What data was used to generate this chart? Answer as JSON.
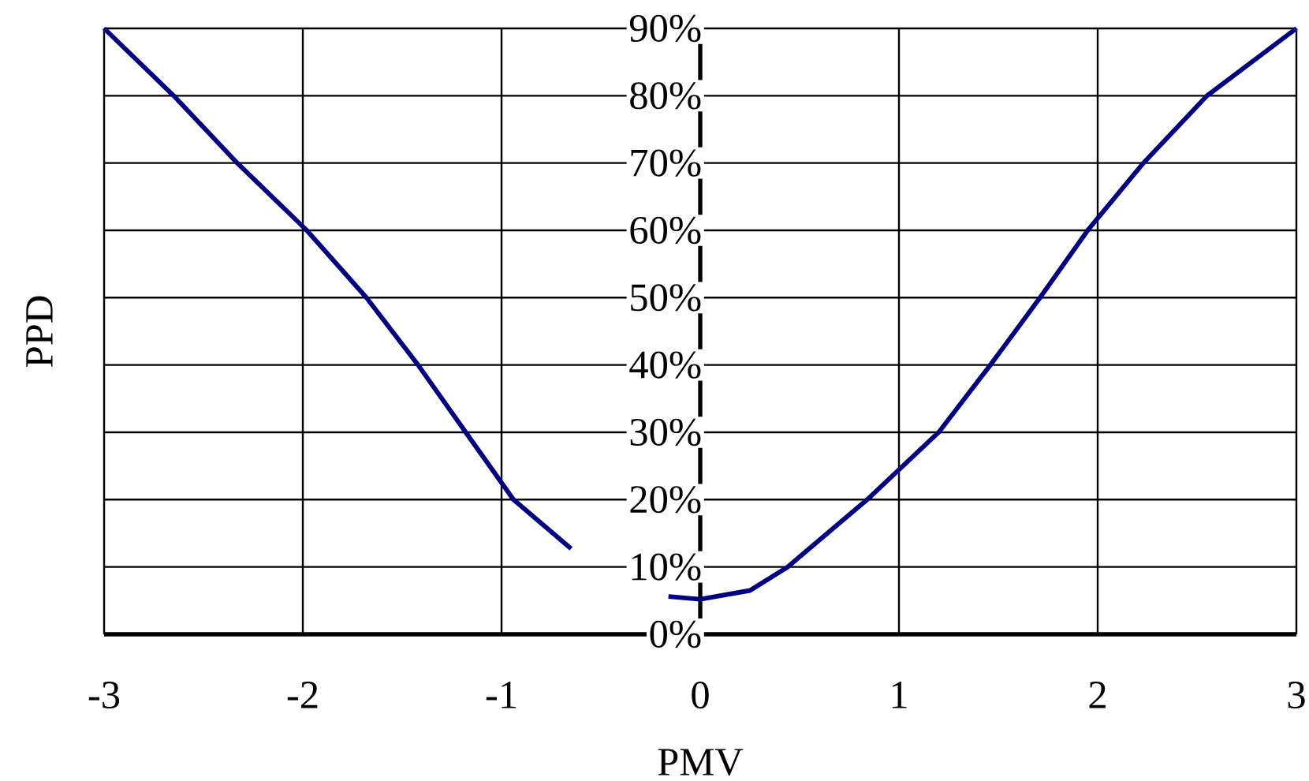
{
  "chart_data": {
    "type": "line",
    "xlabel": "PMV",
    "ylabel": "PPD",
    "xlim": [
      -3,
      3
    ],
    "ylim": [
      0,
      90
    ],
    "xticks": [
      -3,
      -2,
      -1,
      0,
      1,
      2,
      3
    ],
    "yticks": [
      {
        "value": 0,
        "label": "0%"
      },
      {
        "value": 10,
        "label": "10%"
      },
      {
        "value": 20,
        "label": "20%"
      },
      {
        "value": 30,
        "label": "30%"
      },
      {
        "value": 40,
        "label": "40%"
      },
      {
        "value": 50,
        "label": "50%"
      },
      {
        "value": 60,
        "label": "60%"
      },
      {
        "value": 70,
        "label": "70%"
      },
      {
        "value": 80,
        "label": "80%"
      },
      {
        "value": 90,
        "label": "90%"
      }
    ],
    "grid": true,
    "marker": "none",
    "line_style": "solid",
    "series": [
      {
        "color": "#000080",
        "x": [
          -3,
          -2.65,
          -2.33,
          -1.98,
          -1.68,
          -1.42,
          -1.18,
          -0.94,
          -0.65,
          -0.4,
          -0.16,
          0,
          0.25,
          0.44,
          0.84,
          1.2,
          1.46,
          1.71,
          1.95,
          2.23,
          2.55,
          3
        ],
        "values": [
          90,
          80,
          70,
          60,
          50,
          40,
          30,
          20,
          12.7,
          null,
          5.6,
          5.2,
          6.5,
          10,
          20,
          30,
          40,
          50,
          60,
          70,
          80,
          90
        ]
      }
    ]
  }
}
